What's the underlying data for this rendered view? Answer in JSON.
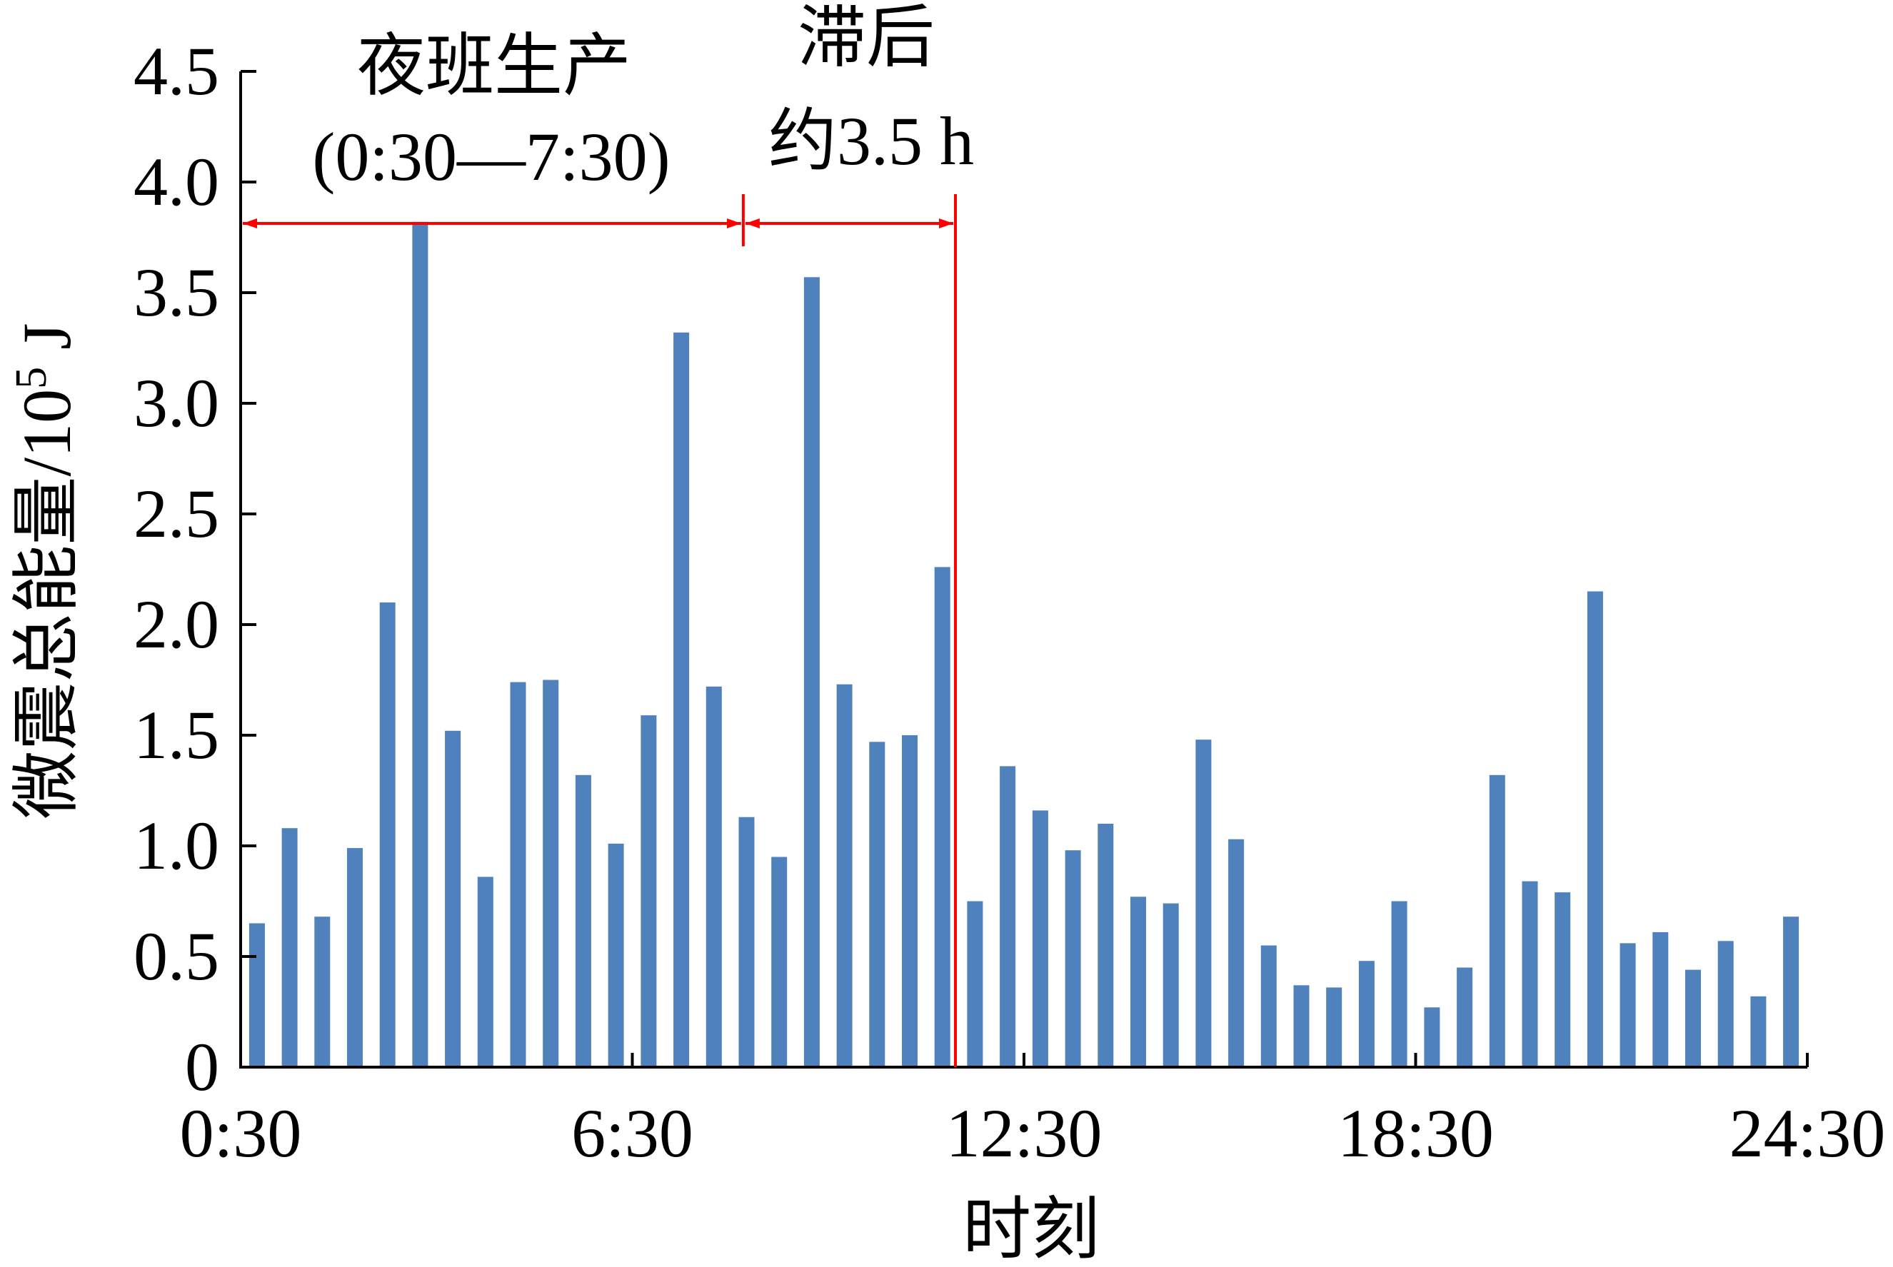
{
  "chart_data": {
    "type": "bar",
    "title": "",
    "xlabel": "时刻",
    "ylabel": "微震总能量/10",
    "ylabel_exponent": "5",
    "ylabel_unit": " J",
    "ylim": [
      0,
      4.5
    ],
    "y_ticks": [
      "0",
      "0.5",
      "1.0",
      "1.5",
      "2.0",
      "2.5",
      "3.0",
      "3.5",
      "4.0",
      "4.5"
    ],
    "x_range_hours": [
      0.5,
      24.5
    ],
    "x_ticks": [
      "0:30",
      "6:30",
      "12:30",
      "18:30",
      "24:30"
    ],
    "bar_color": "#4f81bd",
    "grid": false,
    "legend": "none",
    "values": [
      0.65,
      1.08,
      0.68,
      0.99,
      2.1,
      3.82,
      1.52,
      0.86,
      1.74,
      1.75,
      1.32,
      1.01,
      1.59,
      3.32,
      1.72,
      1.13,
      0.95,
      3.57,
      1.73,
      1.47,
      1.5,
      2.26,
      0.75,
      1.36,
      1.16,
      0.98,
      1.1,
      0.77,
      0.74,
      1.48,
      1.03,
      0.55,
      0.37,
      0.36,
      0.48,
      0.75,
      0.27,
      0.45,
      1.32,
      0.84,
      0.79,
      2.15,
      0.56,
      0.61,
      0.44,
      0.57,
      0.32,
      0.68
    ]
  },
  "annotations": {
    "night_shift_label": "夜班生产",
    "night_shift_range": "(0:30—7:30)",
    "lag_label": "滞后",
    "lag_duration": "约3.5 h",
    "arrow_color": "#ff0000",
    "night_shift_end_x": 8.2,
    "lag_end_x": 11.45
  }
}
